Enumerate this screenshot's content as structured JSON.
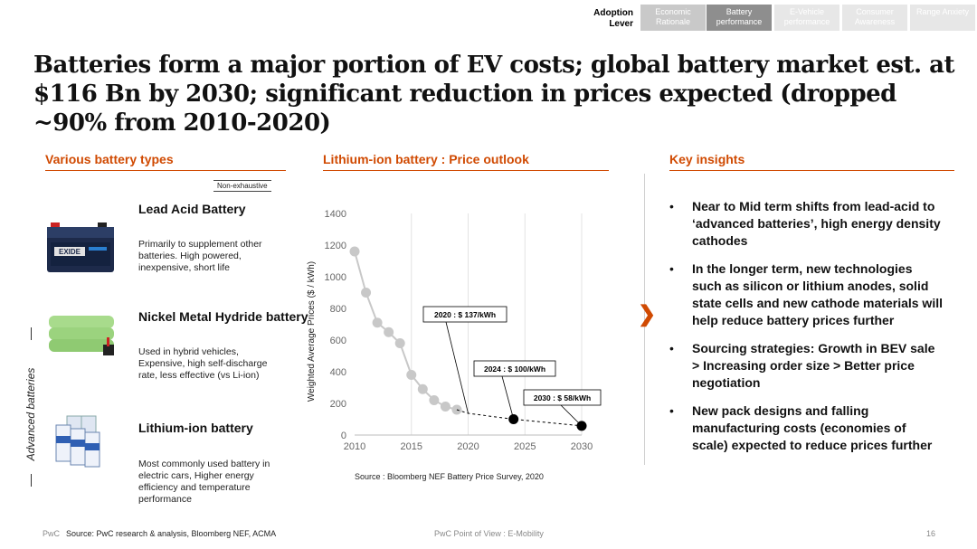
{
  "nav": {
    "lever_label": "Adoption Lever",
    "tabs": [
      {
        "label": "Economic Rationale",
        "state": "inactive"
      },
      {
        "label": "Battery performance",
        "state": "active"
      },
      {
        "label": "E-Vehicle performance",
        "state": "faded"
      },
      {
        "label": "Consumer Awareness",
        "state": "faded"
      },
      {
        "label": "Range Anxiety",
        "state": "faded"
      }
    ]
  },
  "headline": "Batteries form a major portion of EV costs; global battery market est. at $116 Bn by 2030; significant reduction in prices expected (dropped ~90% from 2010-2020)",
  "battery_types": {
    "header": "Various battery types",
    "note": "Non-exhaustive",
    "advanced_label": "Advanced batteries",
    "items": [
      {
        "title": "Lead Acid Battery",
        "description": "Primarily to supplement other batteries. High powered, inexpensive, short life",
        "image_text": "EXIDE"
      },
      {
        "title": "Nickel Metal Hydride battery",
        "description": "Used in hybrid vehicles, Expensive, high self-discharge rate, less effective (vs Li-ion)"
      },
      {
        "title": "Lithium-ion battery",
        "description": "Most commonly used battery in electric cars, Higher energy efficiency and temperature performance"
      }
    ]
  },
  "price_outlook": {
    "header": "Lithium-ion battery : Price outlook",
    "source": "Source : Bloomberg  NEF  Battery  Price  Survey, 2020"
  },
  "chart_data": {
    "type": "line",
    "title": "",
    "xlabel": "",
    "ylabel": "Weighted Average Prices ($ / kWh)",
    "xlim": [
      2010,
      2030
    ],
    "ylim": [
      0,
      1400
    ],
    "x_ticks": [
      2010,
      2015,
      2020,
      2025,
      2030
    ],
    "y_ticks": [
      0,
      200,
      400,
      600,
      800,
      1000,
      1200,
      1400
    ],
    "grid": "vertical",
    "series": [
      {
        "name": "",
        "color": "#c8c8c8",
        "x": [
          2010,
          2011,
          2012,
          2013,
          2014,
          2015,
          2016,
          2017,
          2018,
          2019
        ],
        "values": [
          1160,
          900,
          710,
          650,
          580,
          380,
          290,
          220,
          180,
          160
        ]
      },
      {
        "name": "",
        "color": "#000000",
        "style": "dashed",
        "x": [
          2019,
          2020,
          2024,
          2030
        ],
        "values": [
          160,
          137,
          100,
          58
        ]
      }
    ],
    "annotations": [
      {
        "text": "2020 : $ 137/kWh",
        "x": 2020,
        "y": 137
      },
      {
        "text": "2024 : $ 100/kWh",
        "x": 2024,
        "y": 100
      },
      {
        "text": "2030 : $ 58/kWh",
        "x": 2030,
        "y": 58
      }
    ]
  },
  "insights": {
    "header": "Key insights",
    "items": [
      "Near to Mid term shifts from lead-acid to ‘advanced batteries’, high energy density cathodes",
      "In the longer term, new technologies such as silicon or lithium anodes, solid state cells and new cathode materials will help reduce battery prices further",
      "Sourcing strategies: Growth in BEV sale > Increasing order size > Better price negotiation",
      "New pack designs and falling manufacturing costs (economies of scale) expected to reduce prices further"
    ]
  },
  "footer": {
    "brand": "PwC",
    "source": "Source: PwC research & analysis, Bloomberg NEF, ACMA",
    "center": "PwC Point of View : E-Mobility",
    "page": "16"
  },
  "colors": {
    "accent": "#d04a02",
    "nav_active": "#8e8e8e",
    "nav_inactive": "#c9c9c9"
  }
}
